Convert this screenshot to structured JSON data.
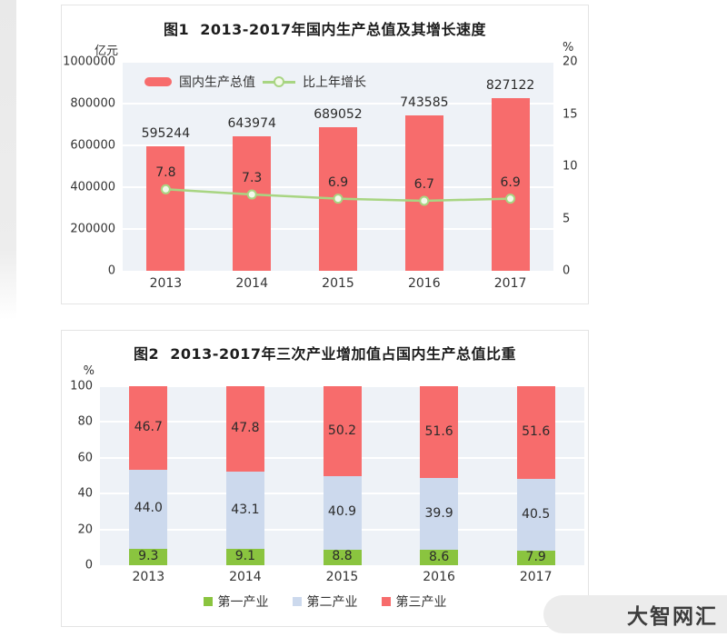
{
  "watermark": {
    "label": "大智网汇"
  },
  "chart_data": [
    {
      "type": "bar",
      "title": "图1  2013-2017年国内生产总值及其增长速度",
      "categories": [
        "2013",
        "2014",
        "2015",
        "2016",
        "2017"
      ],
      "left_axis": {
        "unit": "亿元",
        "min": 0,
        "max": 1000000,
        "tick_values": [
          0,
          200000,
          400000,
          600000,
          800000,
          1000000
        ],
        "tick_labels": [
          "0",
          "200000",
          "400000",
          "600000",
          "800000",
          "1000000"
        ]
      },
      "right_axis": {
        "unit": "%",
        "min": 0,
        "max": 20,
        "tick_values": [
          0,
          5,
          10,
          15,
          20
        ],
        "tick_labels": [
          "0",
          "5",
          "10",
          "15",
          "20"
        ]
      },
      "series": [
        {
          "name": "国内生产总值",
          "kind": "bar",
          "axis": "left",
          "color": "#f76c6c",
          "values": [
            595244,
            643974,
            689052,
            743585,
            827122
          ],
          "labels": [
            "595244",
            "643974",
            "689052",
            "743585",
            "827122"
          ]
        },
        {
          "name": "比上年增长",
          "kind": "line",
          "axis": "right",
          "color": "#a8d582",
          "values": [
            7.8,
            7.3,
            6.9,
            6.7,
            6.9
          ],
          "labels": [
            "7.8",
            "7.3",
            "6.9",
            "6.7",
            "6.9"
          ]
        }
      ],
      "legend_position": "top-left-inside",
      "grid": true,
      "plot_bg": "#eef2f7"
    },
    {
      "type": "stacked-bar",
      "title": "图2  2013-2017年三次产业增加值占国内生产总值比重",
      "categories": [
        "2013",
        "2014",
        "2015",
        "2016",
        "2017"
      ],
      "left_axis": {
        "unit": "%",
        "min": 0,
        "max": 100,
        "tick_values": [
          0,
          20,
          40,
          60,
          80,
          100
        ],
        "tick_labels": [
          "0",
          "20",
          "40",
          "60",
          "80",
          "100"
        ]
      },
      "series": [
        {
          "name": "第一产业",
          "color": "#8ac43f",
          "values": [
            9.3,
            9.1,
            8.8,
            8.6,
            7.9
          ],
          "labels": [
            "9.3",
            "9.1",
            "8.8",
            "8.6",
            "7.9"
          ]
        },
        {
          "name": "第二产业",
          "color": "#ccd9ed",
          "values": [
            44.0,
            43.1,
            40.9,
            39.9,
            40.5
          ],
          "labels": [
            "44.0",
            "43.1",
            "40.9",
            "39.9",
            "40.5"
          ]
        },
        {
          "name": "第三产业",
          "color": "#f76c6c",
          "values": [
            46.7,
            47.8,
            50.2,
            51.6,
            51.6
          ],
          "labels": [
            "46.7",
            "47.8",
            "50.2",
            "51.6",
            "51.6"
          ]
        }
      ],
      "legend_position": "bottom",
      "grid": true,
      "plot_bg": "#eef2f7"
    }
  ]
}
